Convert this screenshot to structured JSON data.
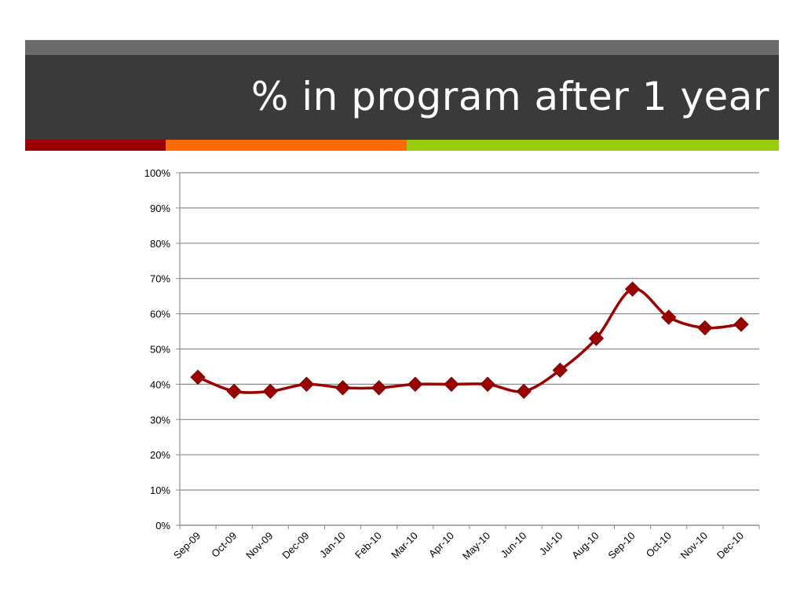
{
  "slide": {
    "title": "% in program after 1 year"
  },
  "colors": {
    "title_band": "#3a3a3a",
    "top_strip": "#6b6b6b",
    "accent_red": "#9a0000",
    "accent_orange": "#ff6a00",
    "accent_green": "#9acc0a",
    "series": "#9a0000"
  },
  "chart_data": {
    "type": "line",
    "categories": [
      "Sep-09",
      "Oct-09",
      "Nov-09",
      "Dec-09",
      "Jan-10",
      "Feb-10",
      "Mar-10",
      "Apr-10",
      "May-10",
      "Jun-10",
      "Jul-10",
      "Aug-10",
      "Sep-10",
      "Oct-10",
      "Nov-10",
      "Dec-10"
    ],
    "series": [
      {
        "values": [
          42,
          38,
          38,
          40,
          39,
          39,
          40,
          40,
          40,
          38,
          44,
          53,
          67,
          59,
          56,
          57
        ]
      }
    ],
    "title": "",
    "xlabel": "",
    "ylabel": "",
    "ylim": [
      0,
      100
    ],
    "yticks": [
      "0%",
      "10%",
      "20%",
      "30%",
      "40%",
      "50%",
      "60%",
      "70%",
      "80%",
      "90%",
      "100%"
    ],
    "grid": true,
    "legend": "none",
    "marker": "diamond",
    "smooth": true
  }
}
